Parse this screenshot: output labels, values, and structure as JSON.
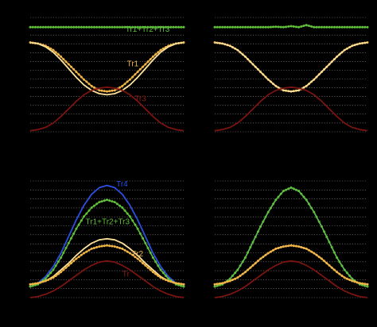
{
  "chart_data": [
    {
      "type": "line",
      "panel": "top-left",
      "x": [
        0,
        5,
        10,
        15,
        20,
        25,
        30,
        35,
        40,
        45,
        50,
        55,
        60,
        65,
        70,
        75,
        80,
        85,
        90,
        95,
        100
      ],
      "ylim": [
        0,
        1.05
      ],
      "grid": true,
      "series": [
        {
          "name": "Tr1+Tr2+Tr3",
          "color": "#5fbf3a",
          "markers": true,
          "values": [
            0.96,
            0.96,
            0.96,
            0.96,
            0.96,
            0.96,
            0.96,
            0.96,
            0.96,
            0.96,
            0.96,
            0.96,
            0.96,
            0.96,
            0.96,
            0.96,
            0.96,
            0.96,
            0.96,
            0.96,
            0.96
          ]
        },
        {
          "name": "Tr1",
          "color": "#f0b445",
          "markers": true,
          "values": [
            0.82,
            0.81,
            0.79,
            0.75,
            0.69,
            0.62,
            0.55,
            0.48,
            0.42,
            0.38,
            0.37,
            0.38,
            0.42,
            0.48,
            0.55,
            0.62,
            0.69,
            0.75,
            0.79,
            0.81,
            0.82
          ]
        },
        {
          "name": "",
          "color": "#fce09a",
          "markers": false,
          "values": [
            0.82,
            0.81,
            0.78,
            0.73,
            0.66,
            0.58,
            0.5,
            0.43,
            0.38,
            0.35,
            0.34,
            0.35,
            0.38,
            0.43,
            0.5,
            0.58,
            0.66,
            0.73,
            0.78,
            0.81,
            0.82
          ]
        },
        {
          "name": "Tr3",
          "color": "#7a1410",
          "markers": false,
          "values": [
            0.01,
            0.02,
            0.04,
            0.08,
            0.14,
            0.21,
            0.28,
            0.34,
            0.38,
            0.4,
            0.41,
            0.4,
            0.38,
            0.34,
            0.28,
            0.21,
            0.14,
            0.08,
            0.04,
            0.02,
            0.01
          ]
        }
      ],
      "labels": [
        {
          "text": "Tr1+Tr2+Tr3",
          "color": "#5fbf3a",
          "x": 62,
          "y": 0.92
        },
        {
          "text": "Tr1",
          "color": "#f0b445",
          "x": 63,
          "y": 0.6
        },
        {
          "text": "Tr3",
          "color": "#8a1a14",
          "x": 68,
          "y": 0.28
        }
      ]
    },
    {
      "type": "line",
      "panel": "top-right",
      "x": [
        0,
        5,
        10,
        15,
        20,
        25,
        30,
        35,
        40,
        45,
        50,
        55,
        60,
        65,
        70,
        75,
        80,
        85,
        90,
        95,
        100
      ],
      "ylim": [
        0,
        1.05
      ],
      "grid": true,
      "series": [
        {
          "name": "",
          "color": "#5fbf3a",
          "markers": true,
          "values": [
            0.96,
            0.96,
            0.96,
            0.96,
            0.96,
            0.96,
            0.96,
            0.96,
            0.965,
            0.96,
            0.97,
            0.96,
            0.98,
            0.96,
            0.96,
            0.96,
            0.96,
            0.96,
            0.96,
            0.96,
            0.96
          ]
        },
        {
          "name": "",
          "color": "#f0b445",
          "markers": true,
          "values": [
            0.82,
            0.81,
            0.79,
            0.75,
            0.69,
            0.62,
            0.55,
            0.48,
            0.42,
            0.38,
            0.37,
            0.38,
            0.42,
            0.48,
            0.55,
            0.62,
            0.69,
            0.75,
            0.79,
            0.81,
            0.82
          ]
        },
        {
          "name": "",
          "color": "#fce09a",
          "markers": false,
          "values": [
            0.82,
            0.81,
            0.79,
            0.75,
            0.69,
            0.62,
            0.55,
            0.48,
            0.42,
            0.38,
            0.37,
            0.38,
            0.42,
            0.48,
            0.55,
            0.62,
            0.69,
            0.75,
            0.79,
            0.81,
            0.82
          ]
        },
        {
          "name": "",
          "color": "#7a1410",
          "markers": false,
          "values": [
            0.01,
            0.02,
            0.04,
            0.08,
            0.14,
            0.21,
            0.28,
            0.34,
            0.38,
            0.4,
            0.41,
            0.4,
            0.38,
            0.34,
            0.28,
            0.21,
            0.14,
            0.08,
            0.04,
            0.02,
            0.01
          ]
        }
      ],
      "labels": []
    },
    {
      "type": "line",
      "panel": "bottom-left",
      "x": [
        0,
        5,
        10,
        15,
        20,
        25,
        30,
        35,
        40,
        45,
        50,
        55,
        60,
        65,
        70,
        75,
        80,
        85,
        90,
        95,
        100
      ],
      "ylim": [
        0,
        1.05
      ],
      "grid": true,
      "series": [
        {
          "name": "Tr4",
          "color": "#2c4fe0",
          "markers": false,
          "values": [
            0.1,
            0.13,
            0.19,
            0.28,
            0.4,
            0.55,
            0.7,
            0.83,
            0.93,
            0.99,
            1.01,
            0.99,
            0.93,
            0.83,
            0.7,
            0.55,
            0.4,
            0.28,
            0.19,
            0.13,
            0.1
          ]
        },
        {
          "name": "Tr1+Tr2+Tr3",
          "color": "#5fbf3a",
          "markers": true,
          "values": [
            0.1,
            0.12,
            0.17,
            0.25,
            0.36,
            0.49,
            0.62,
            0.73,
            0.81,
            0.86,
            0.88,
            0.86,
            0.81,
            0.73,
            0.62,
            0.49,
            0.36,
            0.25,
            0.17,
            0.12,
            0.1
          ]
        },
        {
          "name": "",
          "color": "#fce09a",
          "markers": false,
          "values": [
            0.12,
            0.13,
            0.15,
            0.19,
            0.25,
            0.31,
            0.38,
            0.44,
            0.49,
            0.52,
            0.53,
            0.52,
            0.49,
            0.44,
            0.38,
            0.31,
            0.25,
            0.19,
            0.15,
            0.13,
            0.12
          ]
        },
        {
          "name": "Tr2",
          "color": "#f0b445",
          "markers": true,
          "values": [
            0.12,
            0.13,
            0.15,
            0.18,
            0.23,
            0.29,
            0.35,
            0.4,
            0.44,
            0.46,
            0.47,
            0.46,
            0.44,
            0.4,
            0.35,
            0.29,
            0.23,
            0.18,
            0.15,
            0.13,
            0.12
          ]
        },
        {
          "name": "",
          "color": "#7a1410",
          "markers": false,
          "values": [
            0.0,
            0.01,
            0.03,
            0.06,
            0.1,
            0.15,
            0.2,
            0.25,
            0.29,
            0.32,
            0.33,
            0.32,
            0.29,
            0.25,
            0.2,
            0.15,
            0.1,
            0.06,
            0.03,
            0.01,
            0.0
          ]
        }
      ],
      "labels": [
        {
          "text": "Tr4",
          "color": "#2c4fe0",
          "x": 56,
          "y": 1.0
        },
        {
          "text": "Tr1+Tr2+Tr3",
          "color": "#5fbf3a",
          "x": 36,
          "y": 0.66
        },
        {
          "text": "Tr2",
          "color": "#f0b445",
          "x": 66,
          "y": 0.37
        },
        {
          "text": "Tr",
          "color": "#8a1a14",
          "x": 60,
          "y": 0.19
        }
      ]
    },
    {
      "type": "line",
      "panel": "bottom-right",
      "x": [
        0,
        5,
        10,
        15,
        20,
        25,
        30,
        35,
        40,
        45,
        50,
        55,
        60,
        65,
        70,
        75,
        80,
        85,
        90,
        95,
        100
      ],
      "ylim": [
        0,
        1.05
      ],
      "grid": true,
      "series": [
        {
          "name": "",
          "color": "#2c4fe0",
          "markers": false,
          "values": [
            0.1,
            0.12,
            0.17,
            0.25,
            0.36,
            0.5,
            0.64,
            0.77,
            0.88,
            0.96,
            0.99,
            0.96,
            0.88,
            0.77,
            0.64,
            0.5,
            0.36,
            0.25,
            0.17,
            0.12,
            0.1
          ]
        },
        {
          "name": "",
          "color": "#5fbf3a",
          "markers": true,
          "values": [
            0.1,
            0.12,
            0.17,
            0.25,
            0.36,
            0.5,
            0.64,
            0.77,
            0.88,
            0.96,
            0.99,
            0.96,
            0.88,
            0.77,
            0.64,
            0.5,
            0.36,
            0.25,
            0.17,
            0.12,
            0.1
          ]
        },
        {
          "name": "",
          "color": "#fce09a",
          "markers": false,
          "values": [
            0.12,
            0.13,
            0.15,
            0.18,
            0.23,
            0.29,
            0.35,
            0.4,
            0.44,
            0.46,
            0.47,
            0.46,
            0.44,
            0.4,
            0.35,
            0.29,
            0.23,
            0.18,
            0.15,
            0.13,
            0.12
          ]
        },
        {
          "name": "",
          "color": "#f0b445",
          "markers": true,
          "values": [
            0.12,
            0.13,
            0.15,
            0.18,
            0.23,
            0.29,
            0.35,
            0.4,
            0.44,
            0.46,
            0.47,
            0.46,
            0.44,
            0.4,
            0.35,
            0.29,
            0.23,
            0.18,
            0.15,
            0.13,
            0.12
          ]
        },
        {
          "name": "",
          "color": "#7a1410",
          "markers": false,
          "values": [
            0.0,
            0.01,
            0.03,
            0.06,
            0.1,
            0.15,
            0.2,
            0.25,
            0.29,
            0.32,
            0.33,
            0.32,
            0.29,
            0.25,
            0.2,
            0.15,
            0.1,
            0.06,
            0.03,
            0.01,
            0.0
          ]
        }
      ],
      "labels": []
    }
  ],
  "colors": {
    "background": "#000000",
    "grid": "#8a8a8a"
  }
}
